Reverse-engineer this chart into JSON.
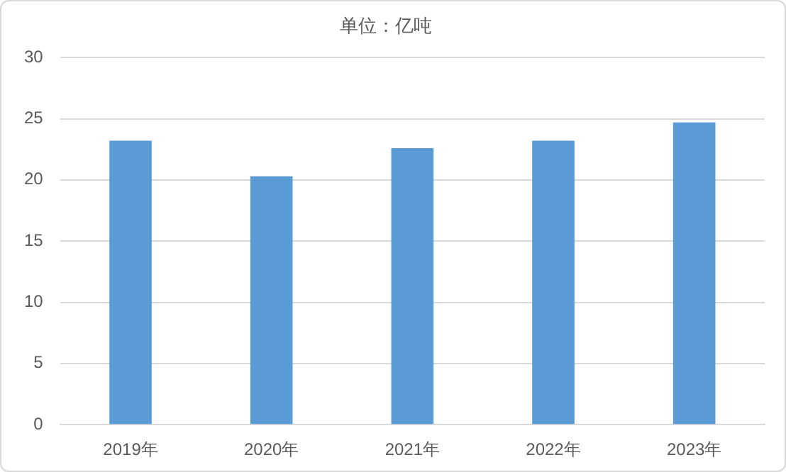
{
  "chart_data": {
    "type": "bar",
    "title": "单位：亿吨",
    "categories": [
      "2019年",
      "2020年",
      "2021年",
      "2022年",
      "2023年"
    ],
    "values": [
      23.2,
      20.3,
      22.6,
      23.2,
      24.7
    ],
    "color": "#5b9bd5",
    "ylim": [
      0,
      30
    ],
    "yticks": [
      0,
      5,
      10,
      15,
      20,
      25,
      30
    ],
    "grid": "y",
    "legend": false
  }
}
